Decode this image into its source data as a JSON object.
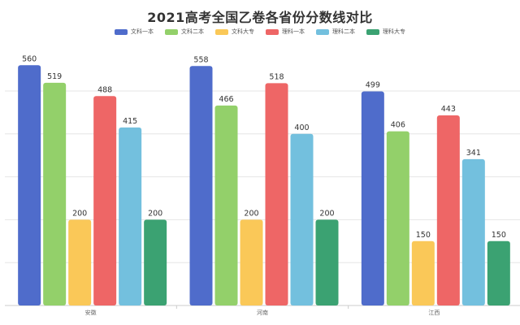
{
  "chart_data": {
    "type": "bar",
    "title": "2021高考全国乙卷各省份分数线对比",
    "xlabel": "",
    "ylabel": "",
    "ylim": [
      0,
      640
    ],
    "grid": true,
    "legend_position": "top",
    "categories": [
      "安徽",
      "河南",
      "江西"
    ],
    "series": [
      {
        "name": "文科一本",
        "color": "#4f6ccb",
        "values": [
          560,
          558,
          499
        ]
      },
      {
        "name": "文科二本",
        "color": "#93d06a",
        "values": [
          519,
          466,
          406
        ]
      },
      {
        "name": "文科大专",
        "color": "#fac858",
        "values": [
          200,
          200,
          150
        ]
      },
      {
        "name": "理科一本",
        "color": "#ee6666",
        "values": [
          488,
          518,
          443
        ]
      },
      {
        "name": "理科二本",
        "color": "#73c0de",
        "values": [
          415,
          400,
          341
        ]
      },
      {
        "name": "理科大专",
        "color": "#3ba272",
        "values": [
          200,
          200,
          150
        ]
      }
    ]
  }
}
